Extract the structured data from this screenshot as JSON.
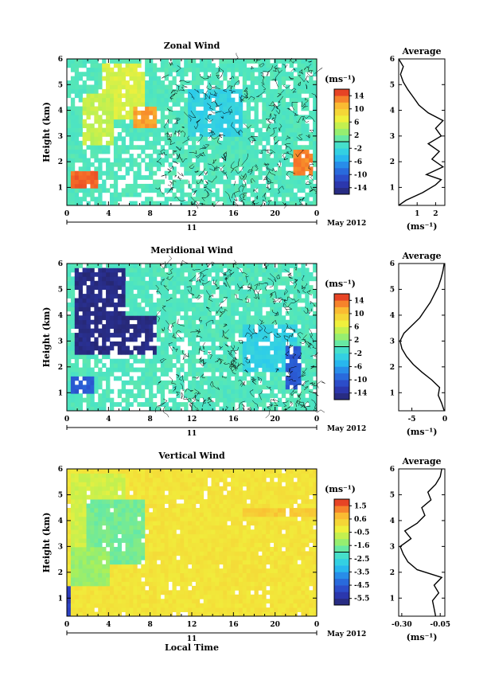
{
  "chart_data": [
    {
      "type": "heatmap",
      "title": "Zonal Wind",
      "ylabel": "Height (km)",
      "xlabel": "",
      "x_ticks": [
        "0",
        "4",
        "8",
        "12",
        "16",
        "20",
        "0"
      ],
      "y_ticks": [
        "1",
        "2",
        "3",
        "4",
        "5",
        "6"
      ],
      "date_day": "11",
      "date_label": "May 2012",
      "xlim": [
        0,
        24
      ],
      "ylim": [
        0.3,
        6
      ],
      "colorbar": {
        "unit": "(ms⁻¹)",
        "ticks": [
          "14",
          "10",
          "6",
          "2",
          "-2",
          "-6",
          "-10",
          "-14"
        ],
        "range": [
          -16,
          16
        ]
      },
      "base_value": 0,
      "features": [
        {
          "x": [
            3.5,
            7.5
          ],
          "y": [
            3.7,
            5.8
          ],
          "value": 6
        },
        {
          "x": [
            1.5,
            4.5
          ],
          "y": [
            2.6,
            4.6
          ],
          "value": 5
        },
        {
          "x": [
            0.2,
            3.0
          ],
          "y": [
            0.9,
            1.6
          ],
          "value": 14
        },
        {
          "x": [
            6.5,
            8.5
          ],
          "y": [
            3.4,
            4.2
          ],
          "value": 12
        },
        {
          "x": [
            21.8,
            23.5
          ],
          "y": [
            1.4,
            2.5
          ],
          "value": 13
        },
        {
          "x": [
            11.5,
            17.0
          ],
          "y": [
            3.0,
            4.8
          ],
          "value": -3
        }
      ],
      "average": {
        "title": "Average",
        "xlabel": "(ms⁻¹)",
        "x_ticks": [
          "1",
          "2"
        ],
        "xlim": [
          0,
          2.5
        ],
        "ylim": [
          0.3,
          6
        ],
        "y_ticks": [
          "1",
          "2",
          "3",
          "4",
          "5",
          "6"
        ],
        "profile": [
          {
            "z": 0.3,
            "v": 0.0
          },
          {
            "z": 0.5,
            "v": 0.4
          },
          {
            "z": 0.8,
            "v": 1.3
          },
          {
            "z": 1.1,
            "v": 2.0
          },
          {
            "z": 1.3,
            "v": 2.3
          },
          {
            "z": 1.5,
            "v": 1.5
          },
          {
            "z": 1.8,
            "v": 2.4
          },
          {
            "z": 2.1,
            "v": 1.8
          },
          {
            "z": 2.4,
            "v": 2.2
          },
          {
            "z": 2.7,
            "v": 1.6
          },
          {
            "z": 3.0,
            "v": 2.3
          },
          {
            "z": 3.3,
            "v": 2.0
          },
          {
            "z": 3.6,
            "v": 2.4
          },
          {
            "z": 3.9,
            "v": 1.6
          },
          {
            "z": 4.2,
            "v": 1.1
          },
          {
            "z": 4.5,
            "v": 0.8
          },
          {
            "z": 4.8,
            "v": 0.5
          },
          {
            "z": 5.1,
            "v": 0.25
          },
          {
            "z": 5.4,
            "v": 0.1
          },
          {
            "z": 5.7,
            "v": 0.25
          },
          {
            "z": 6.0,
            "v": 0.0
          }
        ]
      }
    },
    {
      "type": "heatmap",
      "title": "Meridional Wind",
      "ylabel": "Height (km)",
      "xlabel": "",
      "x_ticks": [
        "0",
        "4",
        "8",
        "12",
        "16",
        "20",
        "0"
      ],
      "y_ticks": [
        "1",
        "2",
        "3",
        "4",
        "5",
        "6"
      ],
      "date_day": "11",
      "date_label": "May 2012",
      "xlim": [
        0,
        24
      ],
      "ylim": [
        0.3,
        6
      ],
      "colorbar": {
        "unit": "(ms⁻¹)",
        "ticks": [
          "14",
          "10",
          "6",
          "2",
          "-2",
          "-6",
          "-10",
          "-14"
        ],
        "range": [
          -16,
          16
        ]
      },
      "base_value": 0,
      "features": [
        {
          "x": [
            0.8,
            5.5
          ],
          "y": [
            2.5,
            5.8
          ],
          "value": -15
        },
        {
          "x": [
            4.0,
            8.5
          ],
          "y": [
            2.5,
            4.0
          ],
          "value": -15
        },
        {
          "x": [
            0.5,
            2.5
          ],
          "y": [
            0.9,
            1.6
          ],
          "value": -10
        },
        {
          "x": [
            17.0,
            22.0
          ],
          "y": [
            1.8,
            3.6
          ],
          "value": -3
        },
        {
          "x": [
            21.0,
            22.5
          ],
          "y": [
            1.2,
            2.8
          ],
          "value": -10
        }
      ],
      "average": {
        "title": "Average",
        "xlabel": "(ms⁻¹)",
        "x_ticks": [
          "-5",
          "0"
        ],
        "xlim": [
          -7,
          0
        ],
        "ylim": [
          0.3,
          6
        ],
        "y_ticks": [
          "1",
          "2",
          "3",
          "4",
          "5",
          "6"
        ],
        "profile": [
          {
            "z": 0.3,
            "v": -0.1
          },
          {
            "z": 0.6,
            "v": -0.5
          },
          {
            "z": 0.9,
            "v": -1.0
          },
          {
            "z": 1.2,
            "v": -0.8
          },
          {
            "z": 1.5,
            "v": -2.0
          },
          {
            "z": 1.8,
            "v": -3.5
          },
          {
            "z": 2.1,
            "v": -4.8
          },
          {
            "z": 2.4,
            "v": -5.8
          },
          {
            "z": 2.7,
            "v": -6.5
          },
          {
            "z": 3.0,
            "v": -6.8
          },
          {
            "z": 3.3,
            "v": -6.2
          },
          {
            "z": 3.6,
            "v": -5.0
          },
          {
            "z": 3.9,
            "v": -3.8
          },
          {
            "z": 4.2,
            "v": -3.0
          },
          {
            "z": 4.5,
            "v": -2.2
          },
          {
            "z": 4.8,
            "v": -1.6
          },
          {
            "z": 5.1,
            "v": -1.0
          },
          {
            "z": 5.4,
            "v": -0.6
          },
          {
            "z": 5.7,
            "v": -0.3
          },
          {
            "z": 6.0,
            "v": -0.1
          }
        ]
      }
    },
    {
      "type": "heatmap",
      "title": "Vertical Wind",
      "ylabel": "Height (km)",
      "xlabel": "Local Time",
      "x_ticks": [
        "0",
        "4",
        "8",
        "12",
        "16",
        "20",
        "0"
      ],
      "y_ticks": [
        "1",
        "2",
        "3",
        "4",
        "5",
        "6"
      ],
      "date_day": "11",
      "date_label": "May 2012",
      "xlim": [
        0,
        24
      ],
      "ylim": [
        0.3,
        6
      ],
      "colorbar": {
        "unit": "(ms⁻¹)",
        "ticks": [
          "1.5",
          "0.6",
          "-0.5",
          "-1.6",
          "-2.5",
          "-3.5",
          "-4.5",
          "-5.5"
        ],
        "range": [
          -6,
          2
        ]
      },
      "base_value": 0,
      "features": [
        {
          "x": [
            0.3,
            5.5
          ],
          "y": [
            2.5,
            5.8
          ],
          "value": -0.6
        },
        {
          "x": [
            2.0,
            7.5
          ],
          "y": [
            2.3,
            4.8
          ],
          "value": -1.6
        },
        {
          "x": [
            0.2,
            4.0
          ],
          "y": [
            1.5,
            3.0
          ],
          "value": -1.2
        },
        {
          "x": [
            0.0,
            0.5
          ],
          "y": [
            0.3,
            1.5
          ],
          "value": -5.0
        },
        {
          "x": [
            17.0,
            24.0
          ],
          "y": [
            4.2,
            4.5
          ],
          "value": 0.5
        }
      ],
      "average": {
        "title": "Average",
        "xlabel": "(ms⁻¹)",
        "x_ticks": [
          "-0.30",
          "-0.05"
        ],
        "xlim": [
          -0.32,
          -0.02
        ],
        "ylim": [
          0.3,
          6
        ],
        "y_ticks": [
          "1",
          "2",
          "3",
          "4",
          "5",
          "6"
        ],
        "profile": [
          {
            "z": 0.3,
            "v": -0.08
          },
          {
            "z": 0.6,
            "v": -0.09
          },
          {
            "z": 0.9,
            "v": -0.1
          },
          {
            "z": 1.2,
            "v": -0.06
          },
          {
            "z": 1.5,
            "v": -0.09
          },
          {
            "z": 1.8,
            "v": -0.04
          },
          {
            "z": 2.1,
            "v": -0.2
          },
          {
            "z": 2.4,
            "v": -0.26
          },
          {
            "z": 2.7,
            "v": -0.29
          },
          {
            "z": 3.0,
            "v": -0.31
          },
          {
            "z": 3.3,
            "v": -0.24
          },
          {
            "z": 3.6,
            "v": -0.28
          },
          {
            "z": 3.9,
            "v": -0.2
          },
          {
            "z": 4.2,
            "v": -0.15
          },
          {
            "z": 4.5,
            "v": -0.17
          },
          {
            "z": 4.8,
            "v": -0.11
          },
          {
            "z": 5.1,
            "v": -0.13
          },
          {
            "z": 5.4,
            "v": -0.08
          },
          {
            "z": 5.7,
            "v": -0.05
          },
          {
            "z": 6.0,
            "v": -0.04
          }
        ]
      }
    }
  ]
}
